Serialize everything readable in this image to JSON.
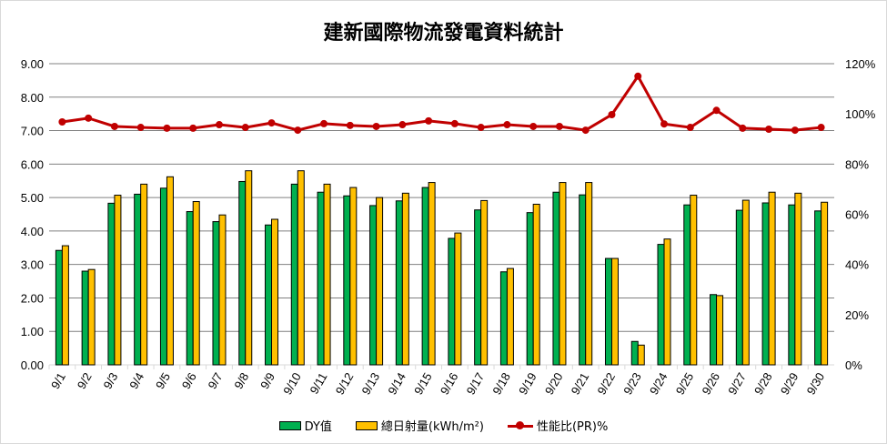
{
  "chart_data": {
    "type": "bar",
    "title": "建新國際物流發電資料統計",
    "categories": [
      "9/1",
      "9/2",
      "9/3",
      "9/4",
      "9/5",
      "9/6",
      "9/7",
      "9/8",
      "9/9",
      "9/10",
      "9/11",
      "9/12",
      "9/13",
      "9/14",
      "9/15",
      "9/16",
      "9/17",
      "9/18",
      "9/19",
      "9/20",
      "9/21",
      "9/22",
      "9/23",
      "9/24",
      "9/25",
      "9/26",
      "9/27",
      "9/28",
      "9/29",
      "9/30"
    ],
    "series": [
      {
        "name": "DY值",
        "type": "bar",
        "axis": "left",
        "color": "#00b050",
        "values": [
          3.42,
          2.8,
          4.83,
          5.1,
          5.28,
          4.58,
          4.28,
          5.48,
          4.18,
          5.4,
          5.16,
          5.05,
          4.76,
          4.9,
          5.3,
          3.78,
          4.63,
          2.78,
          4.55,
          5.16,
          5.08,
          3.18,
          0.7,
          3.6,
          4.78,
          2.1,
          4.62,
          4.84,
          4.78,
          4.6
        ]
      },
      {
        "name": "總日射量(kWh/m²)",
        "type": "bar",
        "axis": "left",
        "color": "#ffc000",
        "values": [
          3.56,
          2.85,
          5.07,
          5.4,
          5.62,
          4.88,
          4.48,
          5.8,
          4.35,
          5.8,
          5.4,
          5.3,
          5.0,
          5.13,
          5.45,
          3.94,
          4.91,
          2.88,
          4.8,
          5.45,
          5.45,
          3.18,
          0.59,
          3.76,
          5.07,
          2.07,
          4.92,
          5.16,
          5.13,
          4.86
        ]
      },
      {
        "name": "性能比(PR)%",
        "type": "line",
        "axis": "right",
        "color": "#c00000",
        "values": [
          96.8,
          98.3,
          95.0,
          94.6,
          94.3,
          94.3,
          95.7,
          94.6,
          96.4,
          93.5,
          96.1,
          95.4,
          95.0,
          95.7,
          97.2,
          96.1,
          94.6,
          95.7,
          95.0,
          95.0,
          93.5,
          99.7,
          115.0,
          96.0,
          94.6,
          101.4,
          94.3,
          93.9,
          93.5,
          94.6
        ]
      }
    ],
    "left_axis": {
      "ylim": [
        0,
        9
      ],
      "ticks": [
        "0.00",
        "1.00",
        "2.00",
        "3.00",
        "4.00",
        "5.00",
        "6.00",
        "7.00",
        "8.00",
        "9.00"
      ]
    },
    "right_axis": {
      "ylim": [
        0,
        120
      ],
      "ticks": [
        "0%",
        "20%",
        "40%",
        "60%",
        "80%",
        "100%",
        "120%"
      ]
    },
    "grid": true,
    "legend_position": "bottom"
  }
}
